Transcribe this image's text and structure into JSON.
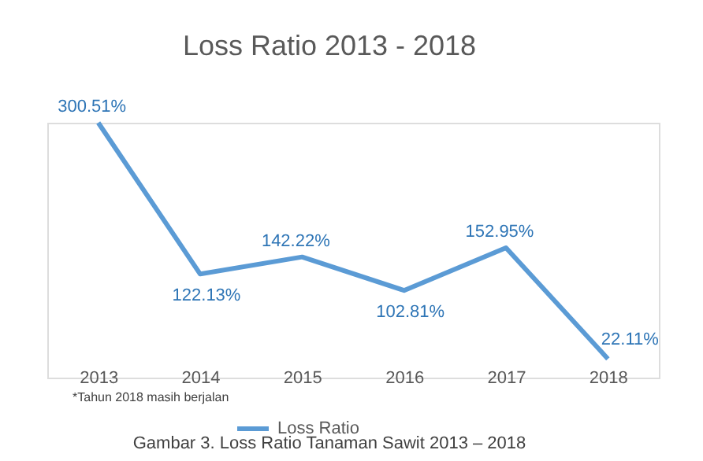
{
  "chart_data": {
    "type": "line",
    "title": "Loss Ratio 2013 - 2018",
    "categories": [
      "2013",
      "2014",
      "2015",
      "2016",
      "2017",
      "2018"
    ],
    "series": [
      {
        "name": "Loss Ratio",
        "color": "#5b9bd5",
        "values": [
          300.51,
          122.13,
          142.22,
          102.81,
          152.95,
          22.11
        ],
        "value_labels": [
          "300.51%",
          "122.13%",
          "142.22%",
          "102.81%",
          "152.95%",
          "22.11%"
        ]
      }
    ],
    "annotations": [
      "*Tahun 2018 masih berjalan",
      "Gambar 3. Loss Ratio Tanaman Sawit 2013 – 2018"
    ],
    "legend": "bottom",
    "grid": false,
    "marker": "none",
    "line_style": "solid"
  }
}
